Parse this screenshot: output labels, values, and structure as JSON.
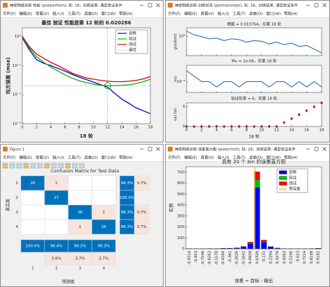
{
  "windows": [
    {
      "title": "神经网络训练 性能 (plotperform), 轮: 18，训练结束: 满足验证条件",
      "menu": [
        "文件(F)",
        "编辑(E)",
        "查看(V)",
        "插入(I)",
        "工具(T)",
        "桌面(D)",
        "窗口(W)",
        "帮助(H)"
      ],
      "chart": {
        "type": "line",
        "title": "最佳 验证 性能是第 12 轮的 0.020286",
        "xlabel": "18 轮",
        "ylabel": "均方误差 (mse)",
        "log_y": true,
        "x": [
          0,
          1,
          2,
          3,
          4,
          5,
          6,
          7,
          8,
          9,
          10,
          11,
          12,
          13,
          14,
          15,
          16,
          17,
          18
        ],
        "xlim": [
          0,
          18
        ],
        "xticks": [
          0,
          2,
          4,
          6,
          8,
          10,
          12,
          14,
          16,
          18
        ],
        "ylim": [
          0.001,
          2
        ],
        "yticks": [
          {
            "value": 0.001,
            "label": "10⁻³"
          },
          {
            "value": 0.01,
            "label": "10⁻²"
          },
          {
            "value": 0.1,
            "label": "10⁻¹"
          },
          {
            "value": 1,
            "label": "10⁰"
          }
        ],
        "series": [
          {
            "name": "训练",
            "color": "#0000c8",
            "values": [
              0.9,
              0.35,
              0.16,
              0.12,
              0.1,
              0.08,
              0.065,
              0.05,
              0.04,
              0.033,
              0.027,
              0.022,
              0.018,
              0.011,
              0.007,
              0.005,
              0.0035,
              0.0028,
              0.0022
            ]
          },
          {
            "name": "验证",
            "color": "#00b400",
            "values": [
              0.95,
              0.4,
              0.2,
              0.13,
              0.09,
              0.065,
              0.048,
              0.037,
              0.03,
              0.026,
              0.023,
              0.021,
              0.020286,
              0.0205,
              0.021,
              0.022,
              0.024,
              0.028,
              0.034
            ]
          },
          {
            "name": "测试",
            "color": "#d20000",
            "values": [
              1.0,
              0.45,
              0.25,
              0.18,
              0.13,
              0.1,
              0.075,
              0.055,
              0.045,
              0.038,
              0.034,
              0.031,
              0.029,
              0.028,
              0.028,
              0.029,
              0.031,
              0.035,
              0.042
            ]
          },
          {
            "name": "最佳",
            "color": "#00a000",
            "style": "best",
            "x": [
              12
            ],
            "values": [
              0.020286
            ]
          }
        ]
      }
    },
    {
      "title": "神经网络训练 训练状态 (plottrainstate), 轮: 18，训练结束: 满足验证条件",
      "menu": [
        "文件(F)",
        "编辑(E)",
        "查看(V)",
        "插入(I)",
        "工具(T)",
        "桌面(D)",
        "窗口(W)",
        "帮助(H)"
      ],
      "chart": {
        "type": "trainstate",
        "xlabel": "18 轮",
        "x": [
          0,
          1,
          2,
          3,
          4,
          5,
          6,
          7,
          8,
          9,
          10,
          11,
          12,
          13,
          14,
          15,
          16,
          17,
          18
        ],
        "xlim": [
          0,
          18
        ],
        "xticks": [
          0,
          2,
          4,
          6,
          8,
          10,
          12,
          14,
          16,
          18
        ],
        "panels": [
          {
            "title": "梯度 = 0.010764，在第 18 轮",
            "ylabel": "gradient",
            "log_y": true,
            "ylim": [
              0.005,
              10
            ],
            "yticks": [
              {
                "value": 1,
                "label": "10⁰"
              }
            ],
            "color": "#1f6fb5",
            "style": "line",
            "values": [
              4,
              1.5,
              0.9,
              0.5,
              0.6,
              0.3,
              0.5,
              0.4,
              0.2,
              0.3,
              0.25,
              0.12,
              0.2,
              0.1,
              0.15,
              0.06,
              0.08,
              0.03,
              0.010764
            ]
          },
          {
            "title": "Mu = 1e-06，在第 18 轮",
            "ylabel": "mu",
            "log_y": true,
            "ylim": [
              1e-07,
              0.01
            ],
            "yticks": [
              {
                "value": 1e-05,
                "label": "10⁻⁵"
              }
            ],
            "color": "#1f6fb5",
            "style": "line",
            "values": [
              0.001,
              0.0001,
              1e-05,
              1e-05,
              1e-06,
              1e-05,
              1e-05,
              1e-06,
              1e-05,
              1e-05,
              1e-05,
              1e-06,
              1e-05,
              1e-05,
              1e-06,
              1e-05,
              1e-06,
              1e-05,
              1e-06
            ]
          },
          {
            "title": "验证检查 = 6，在第 18 轮",
            "ylabel": "val fail",
            "log_y": false,
            "ylim": [
              0,
              6
            ],
            "yticks": [
              0,
              5
            ],
            "color": "#a2142f",
            "style": "points",
            "values": [
              0,
              0,
              0,
              0,
              0,
              0,
              0,
              0,
              0,
              0,
              0,
              0,
              0,
              1,
              2,
              3,
              4,
              5,
              6
            ]
          }
        ]
      }
    },
    {
      "title": "Figure 1",
      "menu": [
        "文件(F)",
        "编辑(E)",
        "查看(V)",
        "插入(I)",
        "工具(T)",
        "桌面(D)",
        "窗口(W)",
        "帮助(H)"
      ],
      "chart": {
        "type": "confusion",
        "title": "Confusion Matrix for Test Data",
        "xlabel": "预测类",
        "ylabel": "真实类",
        "classes": [
          1,
          2,
          3,
          4
        ],
        "matrix": [
          [
            26,
            1,
            0,
            0
          ],
          [
            0,
            27,
            0,
            0
          ],
          [
            0,
            0,
            26,
            1
          ],
          [
            0,
            0,
            1,
            26
          ]
        ],
        "row_summary": {
          "correct": {
            "values": [
              96.3,
              100,
              96.3,
              96.3
            ],
            "value_labels": [
              "96.3%",
              "100.0%",
              "96.3%",
              "96.3%"
            ]
          },
          "wrong": {
            "values": [
              3.7,
              null,
              3.7,
              3.7
            ],
            "value_labels": [
              "3.7%",
              null,
              "3.7%",
              "3.7%"
            ]
          }
        },
        "column_summary": {
          "correct": {
            "values": [
              100,
              96.4,
              96.3,
              96.3
            ],
            "value_labels": [
              "100.0%",
              "96.4%",
              "96.3%",
              "96.3%"
            ]
          },
          "wrong": {
            "values": [
              null,
              3.6,
              3.7,
              3.7
            ],
            "value_labels": [
              null,
              "3.6%",
              "3.7%",
              "3.7%"
            ]
          }
        },
        "correct_color": "#0072bd",
        "wrong_color": "#f8e4dc"
      }
    },
    {
      "title": "神经网络训练 误差直方图 (ploterrhist), 轮: 18，训练结束: 满足验证条件",
      "menu": [
        "文件(F)",
        "编辑(E)",
        "查看(V)",
        "插入(I)",
        "工具(T)",
        "桌面(D)",
        "窗口(W)",
        "帮助(H)"
      ],
      "chart": {
        "type": "histogram",
        "title": "具有 20 个 bin 的误差直方图",
        "xlabel": "误差 = 目标 - 输出",
        "ylabel": "实例",
        "x": [
          -0.9514,
          -0.853,
          -0.7546,
          -0.6562,
          -0.5578,
          -0.4594,
          -0.361,
          -0.2626,
          -0.1642,
          -0.0658,
          0.0326,
          0.131,
          0.2294,
          0.3278,
          0.4262,
          0.5246,
          0.623,
          0.7214,
          0.8198,
          0.9182
        ],
        "ylim": [
          0,
          750
        ],
        "yticks": [
          0,
          100,
          200,
          300,
          400,
          500,
          600,
          700
        ],
        "series": [
          {
            "name": "训练",
            "color": "#0000ff",
            "values": [
              2,
              1,
              1,
              2,
              2,
              3,
              4,
              6,
              15,
              45,
              560,
              60,
              15,
              5,
              2,
              1,
              1,
              1,
              2,
              3
            ]
          },
          {
            "name": "验证",
            "color": "#00c000",
            "values": [
              0,
              0,
              0,
              0,
              1,
              1,
              1,
              1,
              4,
              8,
              70,
              10,
              3,
              1,
              0,
              0,
              0,
              0,
              1,
              1
            ]
          },
          {
            "name": "测试",
            "color": "#ff0000",
            "values": [
              0,
              0,
              0,
              1,
              0,
              1,
              1,
              2,
              3,
              8,
              75,
              10,
              3,
              1,
              0,
              0,
              1,
              0,
              0,
              1
            ]
          }
        ],
        "zero_line": {
          "name": "零误差",
          "color": "#ffa500",
          "x": 0
        }
      }
    }
  ]
}
